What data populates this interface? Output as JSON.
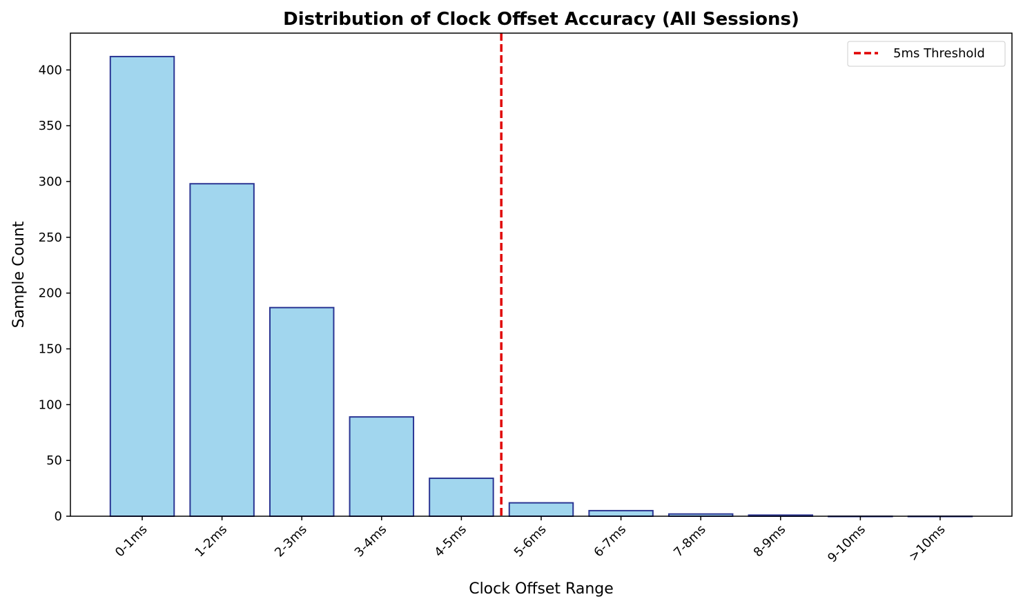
{
  "chart_data": {
    "type": "bar",
    "title": "Distribution of Clock Offset Accuracy (All Sessions)",
    "xlabel": "Clock Offset Range",
    "ylabel": "Sample Count",
    "categories": [
      "0-1ms",
      "1-2ms",
      "2-3ms",
      "3-4ms",
      "4-5ms",
      "5-6ms",
      "6-7ms",
      "7-8ms",
      "8-9ms",
      "9-10ms",
      ">10ms"
    ],
    "values": [
      412,
      298,
      187,
      89,
      34,
      12,
      5,
      2,
      1,
      0,
      0
    ],
    "ylim": [
      0,
      433
    ],
    "yticks": [
      0,
      50,
      100,
      150,
      200,
      250,
      300,
      350,
      400
    ],
    "bar_fill": "#a1d6ee",
    "bar_edge": "#2a3593",
    "grid": false,
    "threshold": {
      "label": "5ms Threshold",
      "x": 4.5,
      "color": "#e00000",
      "style": "dashed"
    },
    "legend_position": "upper right"
  }
}
